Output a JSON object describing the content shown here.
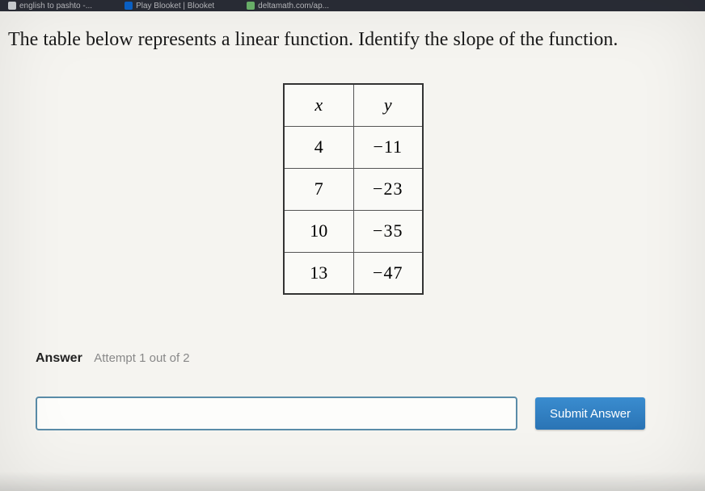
{
  "browser": {
    "tabs": [
      {
        "label": "english to pashto -...",
        "iconColor": "#cfd2d6"
      },
      {
        "label": "Play Blooket | Blooket",
        "iconColor": "#0b63c9"
      },
      {
        "label": "deltamath.com/ap...",
        "iconColor": "#6bb36b"
      }
    ]
  },
  "question": "The table below represents a linear function. Identify the slope of the function.",
  "table": {
    "type": "table",
    "columns": [
      "x",
      "y"
    ],
    "rows": [
      [
        "4",
        "−11"
      ],
      [
        "7",
        "−23"
      ],
      [
        "10",
        "−35"
      ],
      [
        "13",
        "−47"
      ]
    ],
    "border_color": "#555555",
    "cell_bg": "#fafaf7",
    "font_size": 22
  },
  "answer": {
    "label": "Answer",
    "attempt": "Attempt 1 out of 2",
    "input_value": "",
    "input_placeholder": "",
    "submit_label": "Submit Answer"
  },
  "colors": {
    "page_bg": "#f5f4f0",
    "input_border": "#5a8ca8",
    "button_bg": "#2d7fc1",
    "button_text": "#ffffff"
  }
}
